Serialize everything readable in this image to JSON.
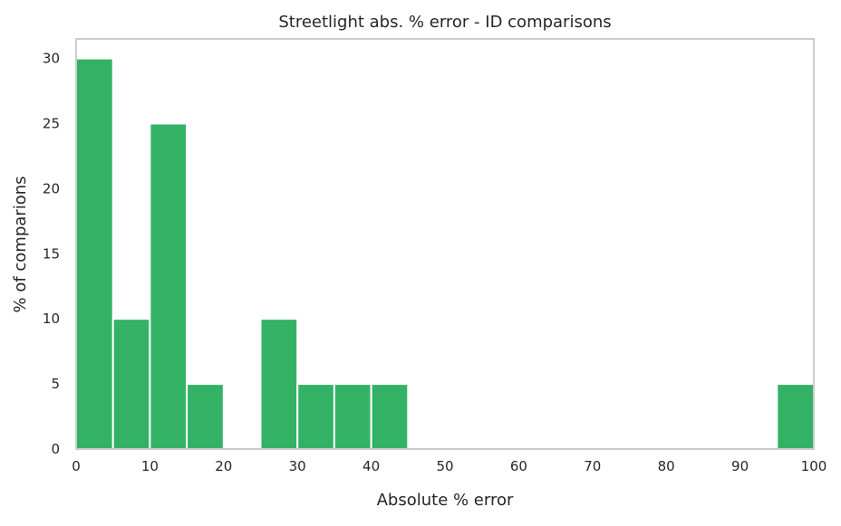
{
  "chart_data": {
    "type": "bar",
    "subtype": "histogram",
    "title": "Streetlight abs. % error - ID comparisons",
    "xlabel": "Absolute % error",
    "ylabel": "% of comparions",
    "xlim": [
      0,
      100
    ],
    "ylim": [
      0,
      31.5
    ],
    "bin_width": 5,
    "x_ticks": [
      0,
      10,
      20,
      30,
      40,
      50,
      60,
      70,
      80,
      90,
      100
    ],
    "y_ticks": [
      0,
      5,
      10,
      15,
      20,
      25,
      30
    ],
    "bins": [
      {
        "start": 0,
        "end": 5,
        "value": 30
      },
      {
        "start": 5,
        "end": 10,
        "value": 10
      },
      {
        "start": 10,
        "end": 15,
        "value": 25
      },
      {
        "start": 15,
        "end": 20,
        "value": 5
      },
      {
        "start": 20,
        "end": 25,
        "value": 0
      },
      {
        "start": 25,
        "end": 30,
        "value": 10
      },
      {
        "start": 30,
        "end": 35,
        "value": 5
      },
      {
        "start": 35,
        "end": 40,
        "value": 5
      },
      {
        "start": 40,
        "end": 45,
        "value": 5
      },
      {
        "start": 45,
        "end": 50,
        "value": 0
      },
      {
        "start": 50,
        "end": 55,
        "value": 0
      },
      {
        "start": 55,
        "end": 60,
        "value": 0
      },
      {
        "start": 60,
        "end": 65,
        "value": 0
      },
      {
        "start": 65,
        "end": 70,
        "value": 0
      },
      {
        "start": 70,
        "end": 75,
        "value": 0
      },
      {
        "start": 75,
        "end": 80,
        "value": 0
      },
      {
        "start": 80,
        "end": 85,
        "value": 0
      },
      {
        "start": 85,
        "end": 90,
        "value": 0
      },
      {
        "start": 90,
        "end": 95,
        "value": 0
      },
      {
        "start": 95,
        "end": 100,
        "value": 5
      }
    ],
    "bar_color": "#33b266",
    "bar_edge_color": "#ffffff",
    "axes_edge_color": "#cccccc",
    "grid": false,
    "legend": "none"
  }
}
